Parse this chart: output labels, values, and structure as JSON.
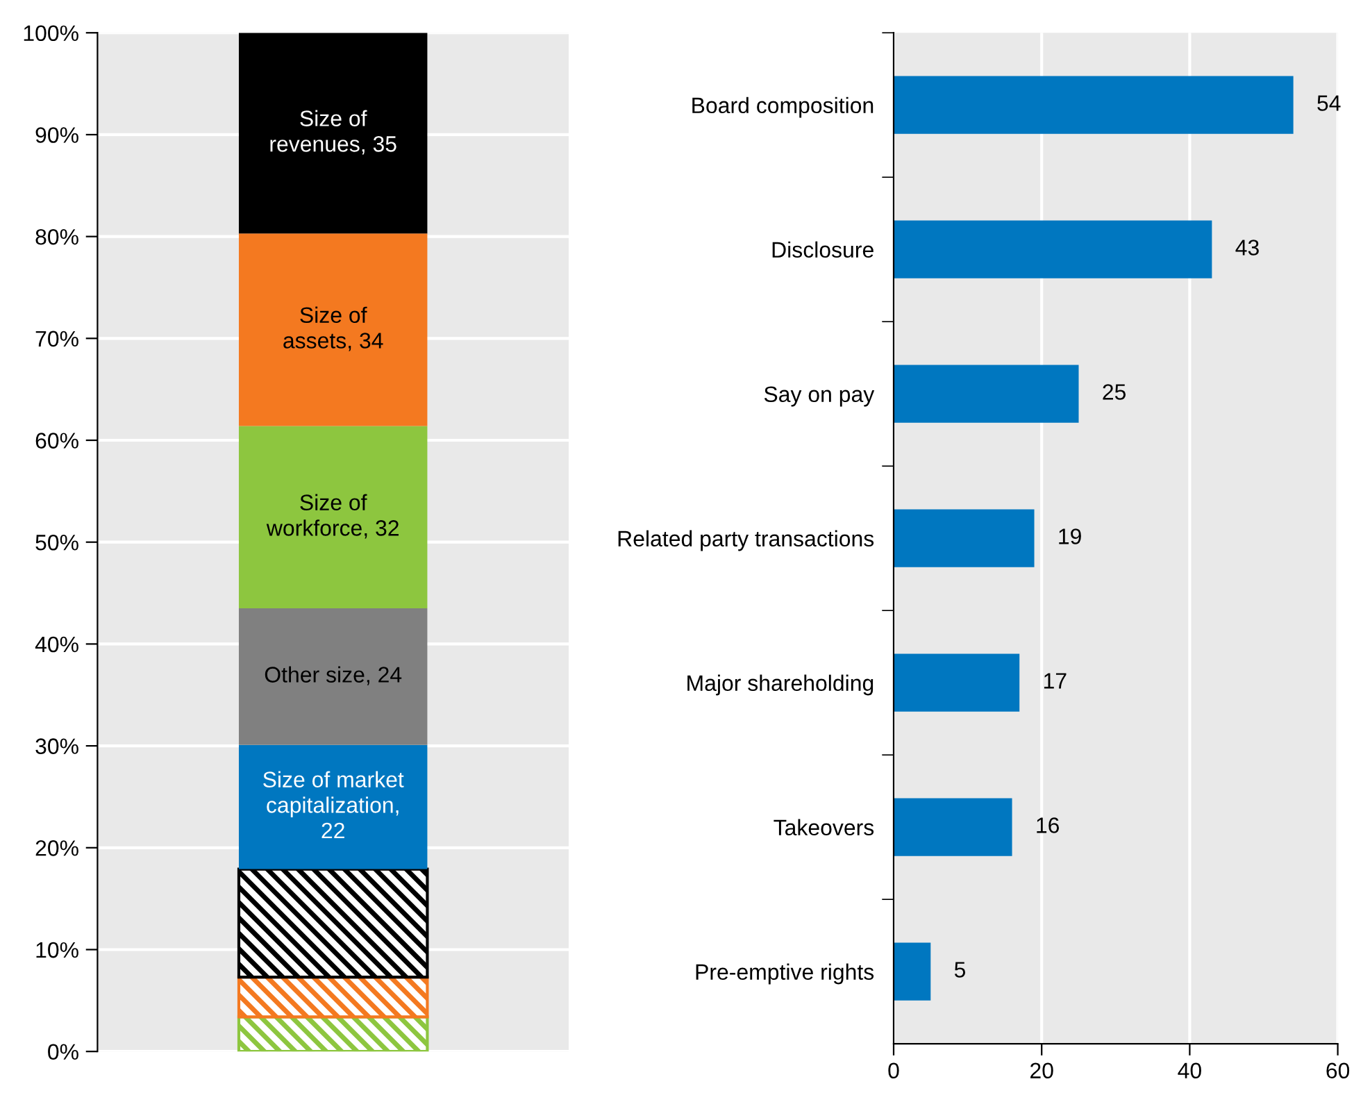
{
  "chart_data": [
    {
      "type": "bar",
      "stacked": true,
      "categories": [
        null
      ],
      "ylim": [
        0,
        100
      ],
      "yticks": [
        {
          "value": 0,
          "label": "0%"
        },
        {
          "value": 10,
          "label": "10%"
        },
        {
          "value": 20,
          "label": "20%"
        },
        {
          "value": 30,
          "label": "30%"
        },
        {
          "value": 40,
          "label": "40%"
        },
        {
          "value": 50,
          "label": "50%"
        },
        {
          "value": 60,
          "label": "60%"
        },
        {
          "value": 70,
          "label": "70%"
        },
        {
          "value": 80,
          "label": "80%"
        },
        {
          "value": 90,
          "label": "90%"
        },
        {
          "value": 100,
          "label": "100%"
        }
      ],
      "grid": "y",
      "tick_labels": "y",
      "series": [
        {
          "color": "#8dc63f",
          "values": [
            3.4
          ]
        },
        {
          "color": "#f47920",
          "values": [
            3.9
          ]
        },
        {
          "color": "#000000",
          "values": [
            10.6
          ]
        },
        {
          "color": "#0077c0",
          "values": [
            12.2
          ]
        },
        {
          "color": "#808080",
          "values": [
            13.4
          ]
        },
        {
          "color": "#8dc63f",
          "values": [
            17.9
          ]
        },
        {
          "color": "#f47920",
          "values": [
            18.9
          ]
        },
        {
          "color": "#000000",
          "values": [
            19.7
          ]
        }
      ],
      "annotations": [
        "Size of market\ncapitalization,\n22",
        "Other size, 24",
        "Size of\nworkforce, 32",
        "Size of\nassets, 34",
        "Size of\nrevenues, 35"
      ]
    },
    {
      "type": "bar",
      "orientation": "horizontal",
      "categories": [
        "Board composition",
        "Disclosure",
        "Say on pay",
        "Related party transactions",
        "Major shareholding",
        "Takeovers",
        "Pre-emptive rights"
      ],
      "values": [
        54,
        43,
        25,
        19,
        17,
        16,
        5
      ],
      "color": "#0077c0",
      "xlim": [
        0,
        60
      ],
      "xticks": [
        0,
        20,
        40,
        60
      ],
      "grid": "x",
      "data_labels": true
    }
  ]
}
